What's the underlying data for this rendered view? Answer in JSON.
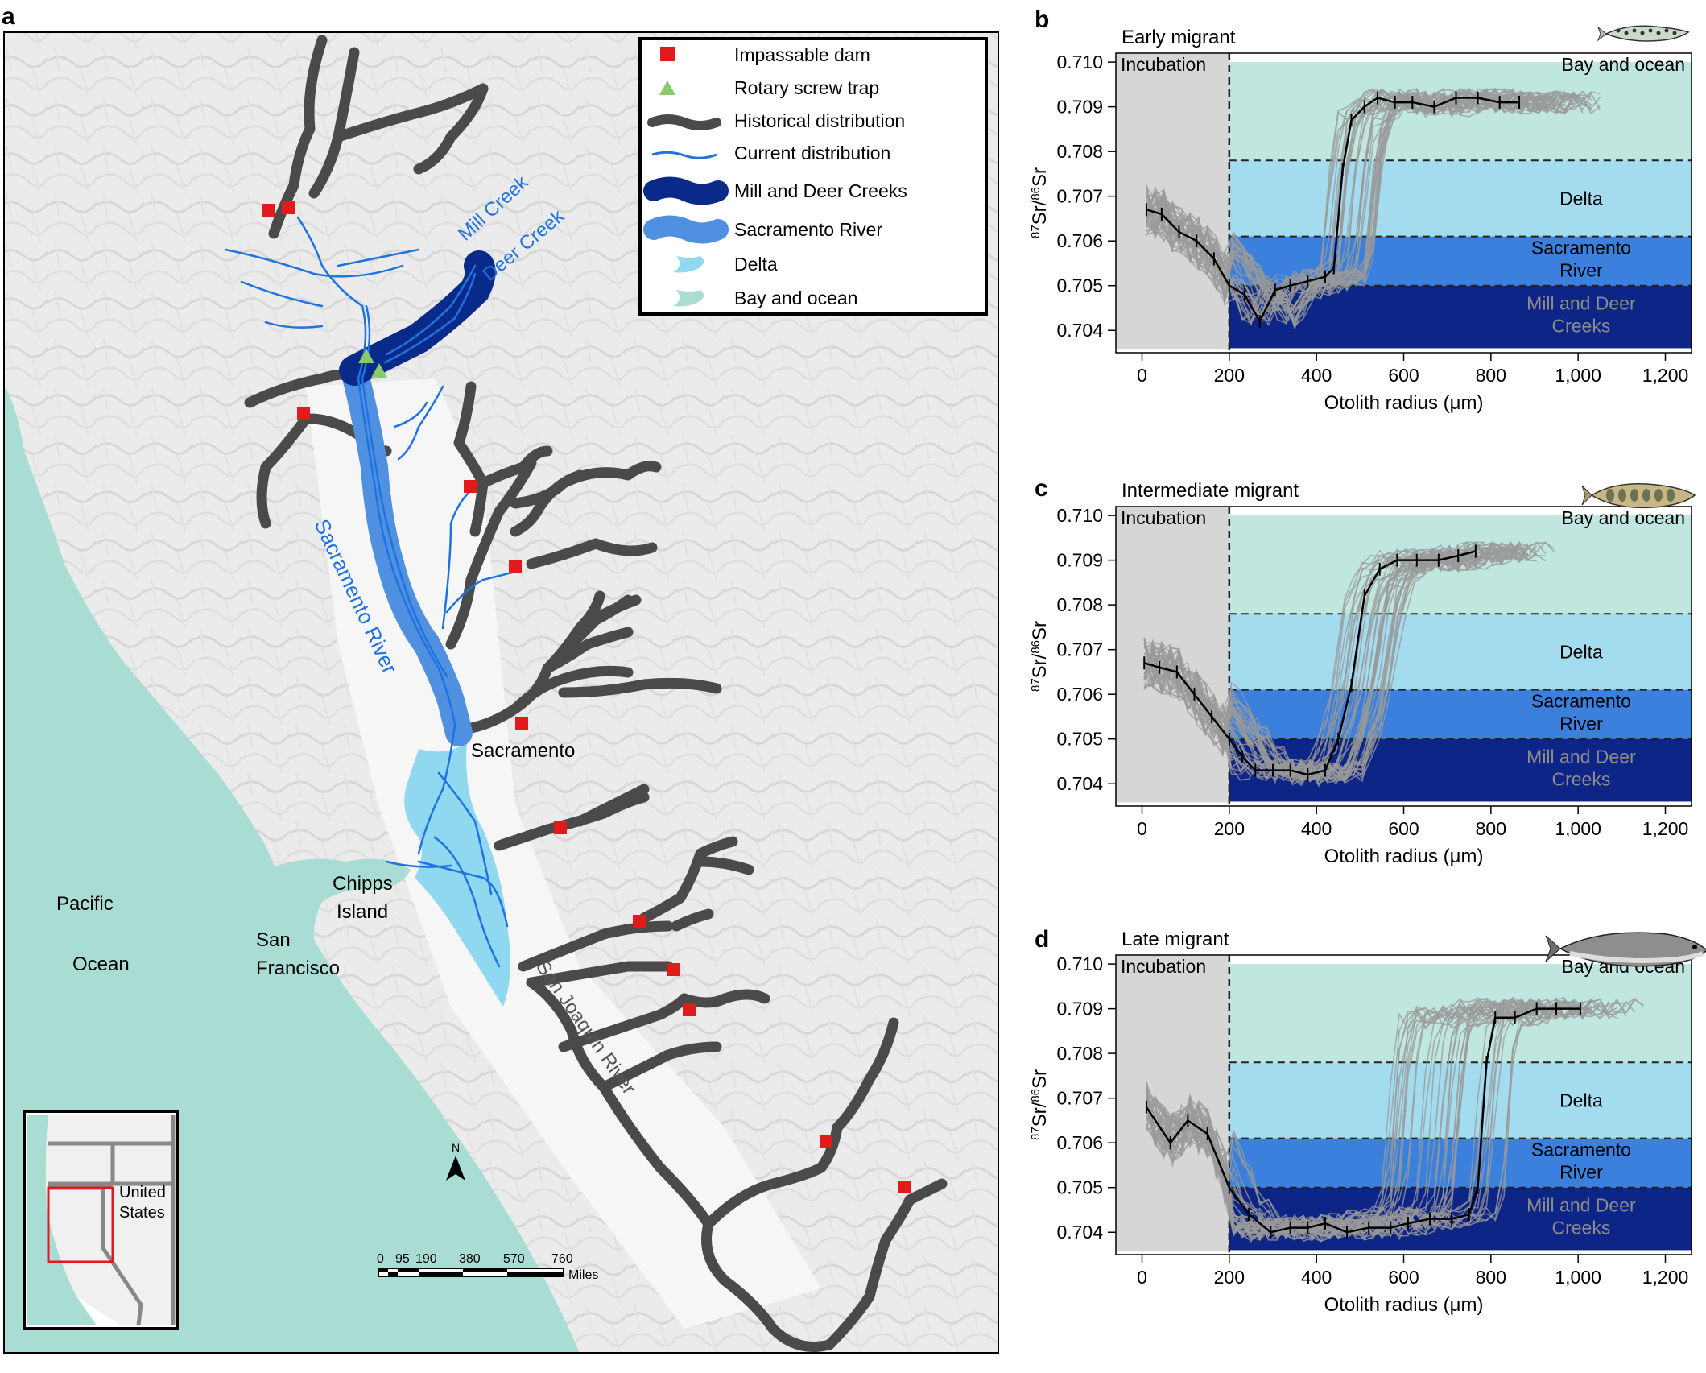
{
  "panels": {
    "a": "a",
    "b": "b",
    "c": "c",
    "d": "d"
  },
  "map": {
    "legend": [
      {
        "key": "dam",
        "label": "Impassable dam",
        "color": "#e01b1b"
      },
      {
        "key": "trap",
        "label": "Rotary screw trap",
        "color": "#8cc96a"
      },
      {
        "key": "hist",
        "label": "Historical distribution",
        "color": "#4a4a4a"
      },
      {
        "key": "curr",
        "label": "Current distribution",
        "color": "#1f73e0"
      },
      {
        "key": "mill",
        "label": "Mill and Deer Creeks",
        "color": "#0a2a8a"
      },
      {
        "key": "sac",
        "label": "Sacramento River",
        "color": "#4f90e0"
      },
      {
        "key": "delta",
        "label": "Delta",
        "color": "#8fd8ef"
      },
      {
        "key": "bay",
        "label": "Bay and ocean",
        "color": "#a9dcd3"
      }
    ],
    "labels": {
      "mill_creek": "Mill Creek",
      "deer_creek": "Deer Creek",
      "sacramento_river": "Sacramento River",
      "sacramento": "Sacramento",
      "chipps": "Chipps",
      "island": "Island",
      "pacific": "Pacific",
      "ocean": "Ocean",
      "san": "San",
      "francisco": "Francisco",
      "san_joaquin": "San Joaquin River"
    },
    "inset": {
      "united": "United",
      "states": "States"
    },
    "north": "N",
    "scale": {
      "ticks": [
        "0",
        "95",
        "190",
        "380",
        "570",
        "760"
      ],
      "unit": "Miles"
    }
  },
  "chart_data": [
    {
      "type": "line",
      "panel": "b",
      "title": "Early migrant",
      "xlabel": "Otolith radius (μm)",
      "ylabel_parts": [
        "87",
        "Sr/",
        "86",
        "Sr"
      ],
      "xlim": [
        -60,
        1260
      ],
      "ylim": [
        0.7035,
        0.7102
      ],
      "xticks": [
        0,
        200,
        400,
        600,
        800,
        1000,
        1200
      ],
      "xtick_labels": [
        "0",
        "200",
        "400",
        "600",
        "800",
        "1,000",
        "1,200"
      ],
      "yticks": [
        0.704,
        0.705,
        0.706,
        0.707,
        0.708,
        0.709,
        0.71
      ],
      "ytick_labels": [
        "0.704",
        "0.705",
        "0.706",
        "0.707",
        "0.708",
        "0.709",
        "0.710"
      ],
      "zones": {
        "incubation": {
          "label": "Incubation",
          "x": [
            -60,
            200
          ],
          "color": "#d6d6d6"
        },
        "bay": {
          "label": "Bay and ocean",
          "y": [
            0.7078,
            0.71
          ],
          "color": "#c0e7df"
        },
        "delta": {
          "label": "Delta",
          "y": [
            0.7061,
            0.7078
          ],
          "color": "#a4dcef"
        },
        "sacramento": {
          "label": [
            "Sacramento",
            "River"
          ],
          "y": [
            0.705,
            0.7061
          ],
          "color": "#3a80dc"
        },
        "mill": {
          "label": [
            "Mill and Deer",
            "Creeks"
          ],
          "y": [
            0.7035,
            0.705
          ],
          "color": "#0d2586"
        }
      },
      "mean_series": {
        "x": [
          10,
          45,
          85,
          125,
          165,
          200,
          235,
          270,
          305,
          340,
          380,
          420,
          440,
          460,
          480,
          510,
          540,
          580,
          620,
          670,
          720,
          770,
          820,
          865
        ],
        "y": [
          0.7067,
          0.7066,
          0.7062,
          0.706,
          0.7056,
          0.705,
          0.7048,
          0.7042,
          0.7049,
          0.705,
          0.7051,
          0.7052,
          0.7054,
          0.7076,
          0.7087,
          0.709,
          0.7092,
          0.7091,
          0.7091,
          0.709,
          0.7092,
          0.7092,
          0.7091,
          0.7091
        ]
      },
      "individual_shift_range_um": [
        -30,
        90
      ]
    },
    {
      "type": "line",
      "panel": "c",
      "title": "Intermediate migrant",
      "xlabel": "Otolith radius (μm)",
      "ylabel_parts": [
        "87",
        "Sr/",
        "86",
        "Sr"
      ],
      "xlim": [
        -60,
        1260
      ],
      "ylim": [
        0.7035,
        0.7102
      ],
      "xticks": [
        0,
        200,
        400,
        600,
        800,
        1000,
        1200
      ],
      "xtick_labels": [
        "0",
        "200",
        "400",
        "600",
        "800",
        "1,000",
        "1,200"
      ],
      "yticks": [
        0.704,
        0.705,
        0.706,
        0.707,
        0.708,
        0.709,
        0.71
      ],
      "ytick_labels": [
        "0.704",
        "0.705",
        "0.706",
        "0.707",
        "0.708",
        "0.709",
        "0.710"
      ],
      "zones": {
        "incubation": {
          "label": "Incubation",
          "x": [
            -60,
            200
          ],
          "color": "#d6d6d6"
        },
        "bay": {
          "label": "Bay and ocean",
          "y": [
            0.7078,
            0.71
          ],
          "color": "#c0e7df"
        },
        "delta": {
          "label": "Delta",
          "y": [
            0.7061,
            0.7078
          ],
          "color": "#a4dcef"
        },
        "sacramento": {
          "label": [
            "Sacramento",
            "River"
          ],
          "y": [
            0.705,
            0.7061
          ],
          "color": "#3a80dc"
        },
        "mill": {
          "label": [
            "Mill and Deer",
            "Creeks"
          ],
          "y": [
            0.7035,
            0.705
          ],
          "color": "#0d2586"
        }
      },
      "mean_series": {
        "x": [
          5,
          40,
          80,
          120,
          160,
          200,
          230,
          260,
          300,
          340,
          380,
          420,
          450,
          480,
          510,
          545,
          585,
          630,
          680,
          725,
          765
        ],
        "y": [
          0.7067,
          0.7066,
          0.7065,
          0.706,
          0.7055,
          0.705,
          0.7046,
          0.7043,
          0.7043,
          0.7043,
          0.7042,
          0.7043,
          0.705,
          0.7062,
          0.7082,
          0.7088,
          0.709,
          0.709,
          0.709,
          0.7091,
          0.7092
        ]
      },
      "individual_shift_range_um": [
        -50,
        100
      ]
    },
    {
      "type": "line",
      "panel": "d",
      "title": "Late migrant",
      "xlabel": "Otolith radius (μm)",
      "ylabel_parts": [
        "87",
        "Sr/",
        "86",
        "Sr"
      ],
      "xlim": [
        -60,
        1260
      ],
      "ylim": [
        0.7035,
        0.7102
      ],
      "xticks": [
        0,
        200,
        400,
        600,
        800,
        1000,
        1200
      ],
      "xtick_labels": [
        "0",
        "200",
        "400",
        "600",
        "800",
        "1,000",
        "1,200"
      ],
      "yticks": [
        0.704,
        0.705,
        0.706,
        0.707,
        0.708,
        0.709,
        0.71
      ],
      "ytick_labels": [
        "0.704",
        "0.705",
        "0.706",
        "0.707",
        "0.708",
        "0.709",
        "0.710"
      ],
      "zones": {
        "incubation": {
          "label": "Incubation",
          "x": [
            -60,
            200
          ],
          "color": "#d6d6d6"
        },
        "bay": {
          "label": "Bay and ocean",
          "y": [
            0.7078,
            0.71
          ],
          "color": "#c0e7df"
        },
        "delta": {
          "label": "Delta",
          "y": [
            0.7061,
            0.7078
          ],
          "color": "#a4dcef"
        },
        "sacramento": {
          "label": [
            "Sacramento",
            "River"
          ],
          "y": [
            0.705,
            0.7061
          ],
          "color": "#3a80dc"
        },
        "mill": {
          "label": [
            "Mill and Deer",
            "Creeks"
          ],
          "y": [
            0.7035,
            0.705
          ],
          "color": "#0d2586"
        }
      },
      "mean_series": {
        "x": [
          10,
          65,
          105,
          150,
          200,
          245,
          295,
          340,
          380,
          420,
          470,
          520,
          570,
          610,
          660,
          710,
          750,
          770,
          790,
          810,
          855,
          905,
          950,
          1005
        ],
        "y": [
          0.7068,
          0.706,
          0.7065,
          0.7062,
          0.705,
          0.7044,
          0.704,
          0.7041,
          0.7041,
          0.7042,
          0.704,
          0.7041,
          0.7041,
          0.7042,
          0.7043,
          0.7043,
          0.7044,
          0.705,
          0.7078,
          0.7088,
          0.7088,
          0.709,
          0.709,
          0.709
        ]
      },
      "individual_shift_range_um": [
        -220,
        60
      ]
    }
  ]
}
